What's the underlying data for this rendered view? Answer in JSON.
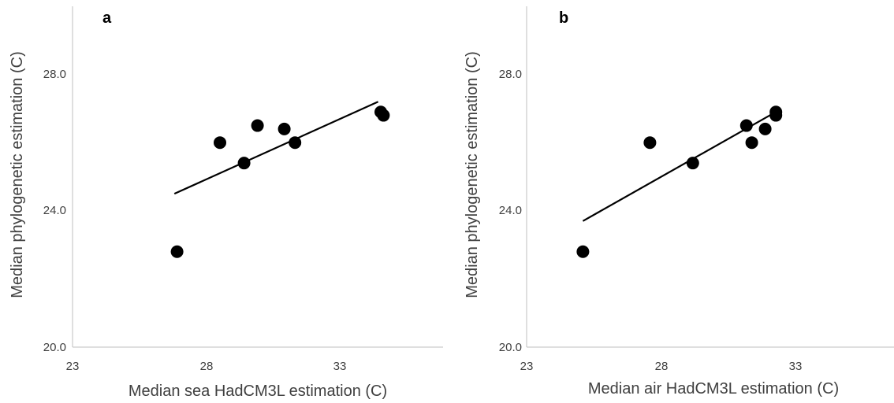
{
  "chart_data": [
    {
      "type": "scatter",
      "panel_label": "a",
      "xlabel": "Median sea HadCM3L estimation (C)",
      "ylabel": "Median phylogenetic estimation (C)",
      "xlim": [
        23,
        38
      ],
      "ylim": [
        20,
        30
      ],
      "x_ticks": [
        "23",
        "28",
        "33"
      ],
      "y_ticks": [
        "20.0",
        "24.0",
        "28.0"
      ],
      "marker_color": "#000000",
      "points": [
        {
          "x": 26.9,
          "y": 22.8
        },
        {
          "x": 28.5,
          "y": 26.0
        },
        {
          "x": 29.4,
          "y": 25.4
        },
        {
          "x": 29.9,
          "y": 26.5
        },
        {
          "x": 30.9,
          "y": 26.4
        },
        {
          "x": 31.3,
          "y": 26.0
        },
        {
          "x": 34.5,
          "y": 26.9
        },
        {
          "x": 34.6,
          "y": 26.8
        }
      ],
      "trendline": {
        "x": [
          26.8,
          34.4
        ],
        "y": [
          24.5,
          27.2
        ]
      }
    },
    {
      "type": "scatter",
      "panel_label": "b",
      "xlabel": "Median air HadCM3L estimation (C)",
      "ylabel": "Median phylogenetic estimation (C)",
      "xlim": [
        23,
        38
      ],
      "ylim": [
        20,
        30
      ],
      "x_ticks": [
        "23",
        "28",
        "33"
      ],
      "y_ticks": [
        "20.0",
        "24.0",
        "28.0"
      ],
      "marker_color": "#000000",
      "points": [
        {
          "x": 25.1,
          "y": 22.8
        },
        {
          "x": 27.6,
          "y": 26.0
        },
        {
          "x": 29.2,
          "y": 25.4
        },
        {
          "x": 31.2,
          "y": 26.5
        },
        {
          "x": 31.4,
          "y": 26.0
        },
        {
          "x": 31.9,
          "y": 26.4
        },
        {
          "x": 32.3,
          "y": 26.9
        },
        {
          "x": 32.3,
          "y": 26.8
        }
      ],
      "trendline": {
        "x": [
          25.1,
          32.3
        ],
        "y": [
          23.7,
          26.9
        ]
      }
    }
  ]
}
